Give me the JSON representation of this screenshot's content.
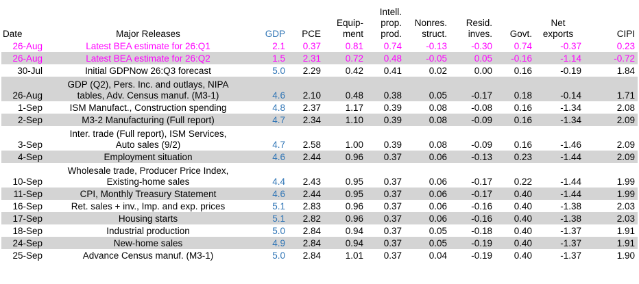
{
  "headers": {
    "date": "Date",
    "releases": "Major Releases",
    "gdp": "GDP",
    "pce": "PCE",
    "equipment": [
      "Equip-",
      "ment"
    ],
    "intell": [
      "Intell.",
      "prop.",
      "prod."
    ],
    "nonres": [
      "Nonres.",
      "struct."
    ],
    "resid": [
      "Resid.",
      "inves."
    ],
    "govt": "Govt.",
    "netexports": [
      "Net",
      "exports"
    ],
    "cipi": "CIPI"
  },
  "rows": [
    {
      "date": "26-Aug",
      "release": [
        "Latest BEA estimate for 26:Q1"
      ],
      "gdp": "2.1",
      "pce": "0.37",
      "equip": "0.81",
      "ip": "0.74",
      "nonres": "-0.13",
      "resid": "-0.30",
      "govt": "0.74",
      "netexp": "-0.37",
      "cipi": "0.23",
      "style": "pink"
    },
    {
      "date": "26-Aug",
      "release": [
        "Latest BEA estimate for 26:Q2"
      ],
      "gdp": "1.5",
      "pce": "2.31",
      "equip": "0.72",
      "ip": "0.48",
      "nonres": "-0.05",
      "resid": "0.05",
      "govt": "-0.16",
      "netexp": "-1.14",
      "cipi": "-0.72",
      "style": "pink gray"
    },
    {
      "date": "30-Jul",
      "release": [
        "Initial GDPNow 26:Q3 forecast"
      ],
      "gdp": "5.0",
      "pce": "2.29",
      "equip": "0.42",
      "ip": "0.41",
      "nonres": "0.02",
      "resid": "0.00",
      "govt": "0.16",
      "netexp": "-0.19",
      "cipi": "1.84",
      "style": ""
    },
    {
      "date": "26-Aug",
      "release": [
        "GDP (Q2), Pers. Inc. and outlays, NIPA",
        "tables, Adv. Census manuf. (M3-1)"
      ],
      "gdp": "4.6",
      "pce": "2.10",
      "equip": "0.48",
      "ip": "0.38",
      "nonres": "0.05",
      "resid": "-0.17",
      "govt": "0.18",
      "netexp": "-0.14",
      "cipi": "1.71",
      "style": "gray"
    },
    {
      "date": "1-Sep",
      "release": [
        "ISM Manufact., Construction spending"
      ],
      "gdp": "4.8",
      "pce": "2.37",
      "equip": "1.17",
      "ip": "0.39",
      "nonres": "0.08",
      "resid": "-0.08",
      "govt": "0.16",
      "netexp": "-1.34",
      "cipi": "2.08",
      "style": ""
    },
    {
      "date": "2-Sep",
      "release": [
        "M3-2 Manufacturing (Full report)"
      ],
      "gdp": "4.7",
      "pce": "2.34",
      "equip": "1.10",
      "ip": "0.39",
      "nonres": "0.08",
      "resid": "-0.09",
      "govt": "0.16",
      "netexp": "-1.34",
      "cipi": "2.09",
      "style": "gray"
    },
    {
      "date": "3-Sep",
      "release": [
        "Inter. trade (Full report), ISM Services,",
        "Auto sales (9/2)"
      ],
      "gdp": "4.7",
      "pce": "2.58",
      "equip": "1.00",
      "ip": "0.39",
      "nonres": "0.08",
      "resid": "-0.09",
      "govt": "0.16",
      "netexp": "-1.46",
      "cipi": "2.09",
      "style": ""
    },
    {
      "date": "4-Sep",
      "release": [
        "Employment situation"
      ],
      "gdp": "4.6",
      "pce": "2.44",
      "equip": "0.96",
      "ip": "0.37",
      "nonres": "0.06",
      "resid": "-0.13",
      "govt": "0.23",
      "netexp": "-1.44",
      "cipi": "2.09",
      "style": "gray"
    },
    {
      "date": "10-Sep",
      "release": [
        "Wholesale trade, Producer Price Index,",
        "Existing-home sales"
      ],
      "gdp": "4.4",
      "pce": "2.43",
      "equip": "0.95",
      "ip": "0.37",
      "nonres": "0.06",
      "resid": "-0.17",
      "govt": "0.22",
      "netexp": "-1.44",
      "cipi": "1.99",
      "style": ""
    },
    {
      "date": "11-Sep",
      "release": [
        "CPI, Monthly Treasury Statement"
      ],
      "gdp": "4.6",
      "pce": "2.44",
      "equip": "0.95",
      "ip": "0.37",
      "nonres": "0.06",
      "resid": "-0.17",
      "govt": "0.40",
      "netexp": "-1.44",
      "cipi": "1.99",
      "style": "gray"
    },
    {
      "date": "16-Sep",
      "release": [
        "Ret. sales + inv., Imp. and exp. prices"
      ],
      "gdp": "5.1",
      "pce": "2.83",
      "equip": "0.96",
      "ip": "0.37",
      "nonres": "0.06",
      "resid": "-0.16",
      "govt": "0.40",
      "netexp": "-1.38",
      "cipi": "2.03",
      "style": ""
    },
    {
      "date": "17-Sep",
      "release": [
        "Housing starts"
      ],
      "gdp": "5.1",
      "pce": "2.82",
      "equip": "0.96",
      "ip": "0.37",
      "nonres": "0.06",
      "resid": "-0.16",
      "govt": "0.40",
      "netexp": "-1.38",
      "cipi": "2.03",
      "style": "gray"
    },
    {
      "date": "18-Sep",
      "release": [
        "Industrial production"
      ],
      "gdp": "5.0",
      "pce": "2.84",
      "equip": "0.94",
      "ip": "0.37",
      "nonres": "0.05",
      "resid": "-0.18",
      "govt": "0.40",
      "netexp": "-1.37",
      "cipi": "1.91",
      "style": ""
    },
    {
      "date": "24-Sep",
      "release": [
        "New-home sales"
      ],
      "gdp": "4.9",
      "pce": "2.84",
      "equip": "0.94",
      "ip": "0.37",
      "nonres": "0.05",
      "resid": "-0.19",
      "govt": "0.40",
      "netexp": "-1.37",
      "cipi": "1.91",
      "style": "gray"
    },
    {
      "date": "25-Sep",
      "release": [
        "Advance Census manuf. (M3-1)"
      ],
      "gdp": "5.0",
      "pce": "2.84",
      "equip": "1.01",
      "ip": "0.37",
      "nonres": "0.04",
      "resid": "-0.19",
      "govt": "0.40",
      "netexp": "-1.37",
      "cipi": "1.90",
      "style": ""
    }
  ],
  "colors": {
    "gdp_text": "#2e74b5",
    "highlight_text": "#ff00ff",
    "band": "#d4d4d4"
  }
}
